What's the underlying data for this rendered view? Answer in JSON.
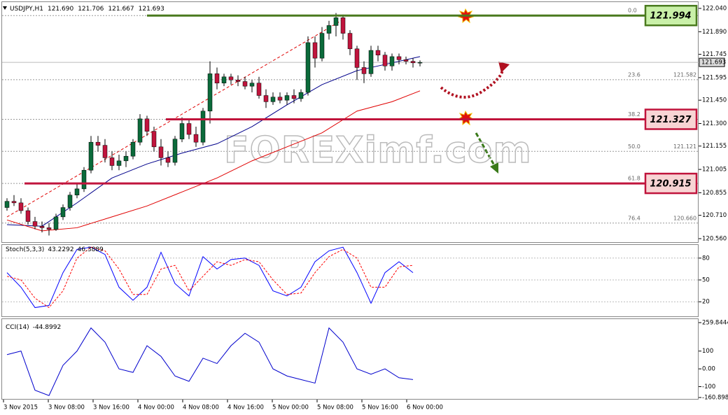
{
  "chart_data": [
    {
      "type": "candlestick",
      "header": {
        "symbol": "USDJPY,H1",
        "ohlc": [
          "121.690",
          "121.706",
          "121.667",
          "121.693"
        ]
      },
      "ohlc": [
        [
          120.76,
          120.82,
          120.74,
          120.8
        ],
        [
          120.8,
          120.84,
          120.77,
          120.79
        ],
        [
          120.79,
          120.82,
          120.72,
          120.74
        ],
        [
          120.74,
          120.76,
          120.65,
          120.67
        ],
        [
          120.67,
          120.7,
          120.62,
          120.64
        ],
        [
          120.64,
          120.67,
          120.6,
          120.63
        ],
        [
          120.63,
          120.66,
          120.58,
          120.62
        ],
        [
          120.62,
          120.72,
          120.61,
          120.7
        ],
        [
          120.7,
          120.78,
          120.68,
          120.76
        ],
        [
          120.76,
          120.86,
          120.74,
          120.84
        ],
        [
          120.84,
          120.92,
          120.82,
          120.88
        ],
        [
          120.88,
          121.02,
          120.86,
          121.0
        ],
        [
          121.0,
          121.22,
          120.98,
          121.18
        ],
        [
          121.18,
          121.22,
          121.12,
          121.16
        ],
        [
          121.16,
          121.2,
          121.05,
          121.08
        ],
        [
          121.08,
          121.12,
          121.0,
          121.03
        ],
        [
          121.03,
          121.1,
          121.0,
          121.06
        ],
        [
          121.06,
          121.12,
          121.02,
          121.09
        ],
        [
          121.09,
          121.2,
          121.07,
          121.18
        ],
        [
          121.18,
          121.36,
          121.16,
          121.33
        ],
        [
          121.33,
          121.35,
          121.22,
          121.25
        ],
        [
          121.25,
          121.28,
          121.12,
          121.15
        ],
        [
          121.15,
          121.2,
          121.03,
          121.08
        ],
        [
          121.08,
          121.12,
          121.02,
          121.05
        ],
        [
          121.05,
          121.22,
          121.03,
          121.2
        ],
        [
          121.2,
          121.34,
          121.18,
          121.3
        ],
        [
          121.3,
          121.32,
          121.2,
          121.23
        ],
        [
          121.23,
          121.28,
          121.15,
          121.18
        ],
        [
          121.18,
          121.4,
          121.16,
          121.38
        ],
        [
          121.38,
          121.7,
          121.3,
          121.62
        ],
        [
          121.62,
          121.66,
          121.52,
          121.56
        ],
        [
          121.56,
          121.62,
          121.54,
          121.6
        ],
        [
          121.6,
          121.62,
          121.55,
          121.58
        ],
        [
          121.58,
          121.61,
          121.54,
          121.57
        ],
        [
          121.57,
          121.6,
          121.52,
          121.54
        ],
        [
          121.54,
          121.58,
          121.5,
          121.56
        ],
        [
          121.56,
          121.6,
          121.46,
          121.48
        ],
        [
          121.48,
          121.52,
          121.4,
          121.44
        ],
        [
          121.44,
          121.5,
          121.42,
          121.47
        ],
        [
          121.47,
          121.5,
          121.43,
          121.45
        ],
        [
          121.45,
          121.5,
          121.42,
          121.48
        ],
        [
          121.48,
          121.52,
          121.43,
          121.46
        ],
        [
          121.46,
          121.52,
          121.44,
          121.5
        ],
        [
          121.5,
          121.86,
          121.48,
          121.82
        ],
        [
          121.82,
          121.86,
          121.66,
          121.72
        ],
        [
          121.72,
          121.92,
          121.7,
          121.88
        ],
        [
          121.88,
          121.96,
          121.84,
          121.93
        ],
        [
          121.93,
          122.01,
          121.86,
          121.98
        ],
        [
          121.98,
          122.0,
          121.84,
          121.88
        ],
        [
          121.88,
          121.9,
          121.74,
          121.78
        ],
        [
          121.78,
          121.8,
          121.58,
          121.66
        ],
        [
          121.66,
          121.7,
          121.56,
          121.62
        ],
        [
          121.62,
          121.8,
          121.6,
          121.77
        ],
        [
          121.77,
          121.8,
          121.7,
          121.74
        ],
        [
          121.74,
          121.76,
          121.64,
          121.67
        ],
        [
          121.67,
          121.75,
          121.64,
          121.73
        ],
        [
          121.73,
          121.75,
          121.68,
          121.71
        ],
        [
          121.71,
          121.73,
          121.68,
          121.7
        ],
        [
          121.7,
          121.72,
          121.66,
          121.69
        ],
        [
          121.69,
          121.706,
          121.667,
          121.693
        ]
      ],
      "up_color": "#0b6b3a",
      "down_color": "#c0143c",
      "ylim": [
        120.5375,
        122.076
      ],
      "yticks": [
        {
          "value": 122.04,
          "label": "122.040"
        },
        {
          "value": 121.89,
          "label": "121.890"
        },
        121.745,
        121.595,
        {
          "value": 121.45,
          "label": "121.450"
        },
        {
          "value": 121.3,
          "label": "121.300"
        },
        121.155,
        121.005,
        120.855,
        {
          "value": 120.71,
          "label": "120.710"
        },
        {
          "value": 120.56,
          "label": "120.560"
        }
      ],
      "current_price": 121.693,
      "moving_averages": [
        {
          "color": "#00008b",
          "x": [
            0,
            5,
            10,
            15,
            20,
            25,
            30,
            35,
            40,
            45,
            50,
            55,
            59
          ],
          "values": [
            120.65,
            120.64,
            120.79,
            120.95,
            121.04,
            121.11,
            121.17,
            121.28,
            121.42,
            121.55,
            121.64,
            121.69,
            121.73
          ]
        },
        {
          "color": "#e00000",
          "x": [
            0,
            5,
            10,
            15,
            20,
            25,
            30,
            35,
            40,
            45,
            50,
            55,
            59
          ],
          "values": [
            120.68,
            120.61,
            120.63,
            120.7,
            120.77,
            120.86,
            120.95,
            121.06,
            121.15,
            121.24,
            121.38,
            121.44,
            121.51
          ]
        }
      ],
      "levels": [
        {
          "value": 121.994,
          "label": "121.994",
          "color": "#4a7a1e",
          "fill": "#c9f0a8"
        },
        {
          "value": 121.327,
          "label": "121.327",
          "color": "#c0143c",
          "fill": "#f8d4d4"
        },
        {
          "value": 120.915,
          "label": "120.915",
          "color": "#c0143c",
          "fill": "#f8d4d4"
        }
      ],
      "fib": [
        {
          "level": "0.0",
          "price": 121.994
        },
        {
          "level": "23.6",
          "price": {
            "value": 121.582,
            "label": "121.582"
          }
        },
        {
          "level": "38.2",
          "price": 121.327
        },
        {
          "level": "50.0",
          "price": {
            "value": 121.121,
            "label": "121.121"
          }
        },
        {
          "level": "61.8",
          "price": 120.915
        },
        {
          "level": "76.4",
          "price": {
            "value": 120.66,
            "label": "120.660"
          }
        }
      ],
      "watermark": "FOREXimf.com"
    },
    {
      "type": "line",
      "title": "Stoch(5,3,3)",
      "header_values": [
        43.2292,
        46.3889
      ],
      "ylim": [
        0,
        100
      ],
      "yticks": [
        80,
        50,
        20
      ],
      "series": [
        {
          "color": "#0000ff",
          "x": [
            0,
            2,
            4,
            6,
            8,
            10,
            12,
            14,
            16,
            18,
            20,
            22,
            24,
            26,
            28,
            30,
            32,
            34,
            36,
            38,
            40,
            42,
            44,
            46,
            48,
            50,
            52,
            54,
            56,
            58
          ],
          "values": [
            60,
            40,
            12,
            15,
            60,
            92,
            95,
            85,
            40,
            22,
            40,
            88,
            45,
            28,
            82,
            65,
            78,
            80,
            70,
            35,
            28,
            40,
            75,
            90,
            95,
            60,
            18,
            60,
            75,
            60
          ]
        },
        {
          "color": "#ff0000",
          "dashed": true,
          "x": [
            0,
            2,
            4,
            6,
            8,
            10,
            12,
            14,
            16,
            18,
            20,
            22,
            24,
            26,
            28,
            30,
            32,
            34,
            36,
            38,
            40,
            42,
            44,
            46,
            48,
            50,
            52,
            54,
            56,
            58
          ],
          "values": [
            55,
            50,
            25,
            12,
            35,
            80,
            95,
            90,
            65,
            30,
            30,
            65,
            70,
            35,
            55,
            75,
            70,
            78,
            75,
            50,
            30,
            32,
            60,
            82,
            92,
            80,
            40,
            40,
            68,
            70
          ]
        }
      ]
    },
    {
      "type": "line",
      "title": "CCI(14)",
      "header_values": [
        -44.8992
      ],
      "ylim": [
        -160.8988,
        259.8444
      ],
      "yticks": [
        259.8444,
        100,
        {
          "value": 0,
          "label": "0.00"
        },
        -100,
        -160.8988
      ],
      "series": [
        {
          "color": "#0000cd",
          "x": [
            0,
            2,
            4,
            6,
            8,
            10,
            12,
            14,
            16,
            18,
            20,
            22,
            24,
            26,
            28,
            30,
            32,
            34,
            36,
            38,
            40,
            42,
            44,
            46,
            48,
            50,
            52,
            54,
            56,
            58
          ],
          "values": [
            80,
            100,
            -120,
            -150,
            20,
            100,
            230,
            150,
            0,
            -20,
            130,
            70,
            -40,
            -70,
            60,
            30,
            130,
            200,
            150,
            0,
            -40,
            -60,
            -80,
            230,
            150,
            0,
            -30,
            0,
            -50,
            -60
          ]
        }
      ],
      "time_labels": [
        "3 Nov 2015",
        "3 Nov 08:00",
        "3 Nov 16:00",
        "4 Nov 00:00",
        "4 Nov 08:00",
        "4 Nov 16:00",
        "5 Nov 00:00",
        "5 Nov 08:00",
        "5 Nov 16:00",
        "6 Nov 00:00"
      ]
    }
  ]
}
